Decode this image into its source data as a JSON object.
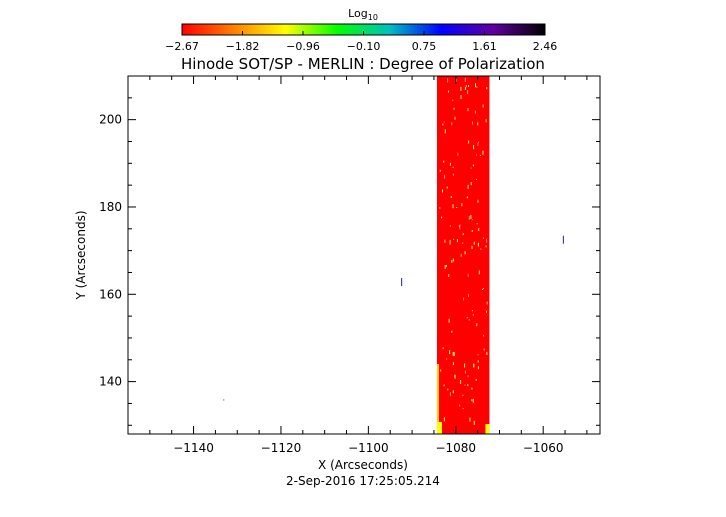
{
  "chart_data": {
    "type": "heatmap",
    "title": "Hinode SOT/SP - MERLIN : Degree of Polarization",
    "xlabel": "X (Arcseconds)",
    "ylabel": "Y (Arcseconds)",
    "timestamp": "2-Sep-2016 17:25:05.214",
    "xlim": [
      -1155,
      -1047
    ],
    "ylim": [
      128,
      210
    ],
    "x_ticks": [
      {
        "value": -1140,
        "label": "−1140"
      },
      {
        "value": -1120,
        "label": "−1120"
      },
      {
        "value": -1100,
        "label": "−1100"
      },
      {
        "value": -1080,
        "label": "−1080"
      },
      {
        "value": -1060,
        "label": "−1060"
      }
    ],
    "y_ticks": [
      {
        "value": 140,
        "label": "140"
      },
      {
        "value": 160,
        "label": "160"
      },
      {
        "value": 180,
        "label": "180"
      },
      {
        "value": 200,
        "label": "200"
      }
    ],
    "colorbar": {
      "title": "Log",
      "title_subscript": "10",
      "range": [
        -2.67,
        2.46
      ],
      "tick_labels": [
        "−2.67",
        "−1.82",
        "−0.96",
        "−0.10",
        "0.75",
        "1.61",
        "2.46"
      ],
      "colors": [
        "#ff0000",
        "#ff8000",
        "#ffff00",
        "#00ff00",
        "#00c0c0",
        "#0000ff",
        "#6000a0",
        "#000000"
      ]
    },
    "data_strip": {
      "x_range": [
        -1084.3,
        -1072.3
      ],
      "y_range": [
        128,
        210
      ],
      "dominant_color": "#ff0000",
      "speckle_color": "#ffff40"
    },
    "stray_marks": [
      {
        "x": -1092.5,
        "y": 162.8
      },
      {
        "x": -1055.5,
        "y": 172.5
      },
      {
        "x": -1133.2,
        "y": 135.8
      }
    ]
  }
}
